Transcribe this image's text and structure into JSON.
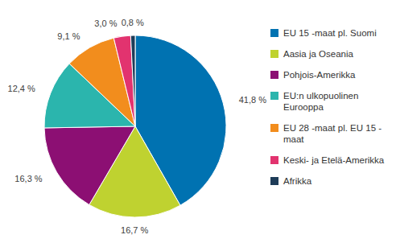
{
  "chart_data": {
    "type": "pie",
    "categories": [
      "EU 15 -maat pl. Suomi",
      "Aasia ja Oseania",
      "Pohjois-Amerikka",
      "EU:n ulkopuolinen Eurooppa",
      "EU 28 -maat pl. EU 15 -maat",
      "Keski- ja Etelä-Amerikka",
      "Afrikka"
    ],
    "values": [
      41.8,
      16.7,
      16.3,
      12.4,
      9.1,
      3.0,
      0.8
    ],
    "value_labels": [
      "41,8 %",
      "16,7 %",
      "16,3 %",
      "12,4 %",
      "9,1 %",
      "3,0 %",
      "0,8 %"
    ],
    "colors": [
      "#0072b1",
      "#bfd230",
      "#8c0f73",
      "#2bb5ad",
      "#f28d1d",
      "#e2336f",
      "#1e3c58"
    ],
    "legend": "right",
    "data_labels": true
  }
}
